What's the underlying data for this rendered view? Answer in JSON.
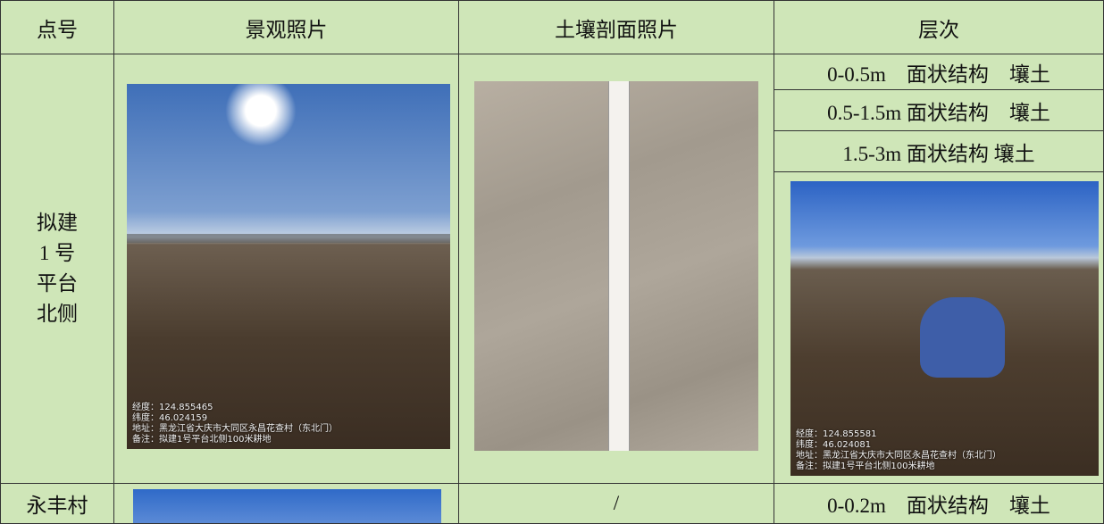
{
  "table": {
    "header": [
      "点号",
      "景观照片",
      "土壤剖面照片",
      "层次"
    ],
    "rows": [
      {
        "point": "拟建 1 号平台北侧",
        "layers": [
          "0-0.5m　面状结构　壤土",
          "0.5-1.5m  面状结构　壤土",
          "1.5-3m 面状结构  壤土"
        ],
        "landscape_caption": [
          "经度：124.855465",
          "纬度：46.024159",
          "地址：黑龙江省大庆市大同区永昌花查村（东北门）",
          "备注：拟建1号平台北侧100米耕地"
        ],
        "field_caption": [
          "经度：124.855581",
          "纬度：46.024081",
          "地址：黑龙江省大庆市大同区永昌花查村（东北门）",
          "备注：拟建1号平台北侧100米耕地"
        ]
      },
      {
        "point": "永丰村",
        "profile": "/",
        "layers": [
          "0-0.2m　面状结构　壤土"
        ]
      }
    ]
  }
}
